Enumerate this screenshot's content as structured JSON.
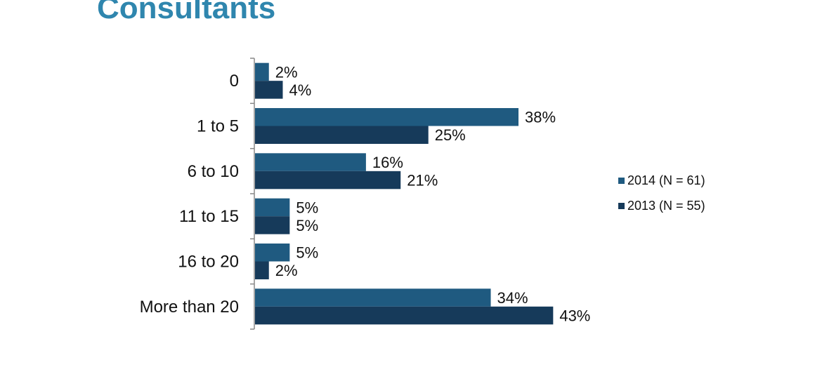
{
  "page": {
    "title": "Consultants"
  },
  "chart_data": {
    "type": "bar",
    "orientation": "horizontal",
    "title": "",
    "xlabel": "",
    "ylabel": "",
    "categories": [
      "0",
      "1 to 5",
      "6 to 10",
      "11 to 15",
      "16 to 20",
      "More than 20"
    ],
    "series": [
      {
        "name": "2014 (N = 61)",
        "values": [
          2,
          38,
          16,
          5,
          5,
          34
        ],
        "color": "#1f5a80"
      },
      {
        "name": "2013 (N = 55)",
        "values": [
          4,
          25,
          21,
          5,
          2,
          43
        ],
        "color": "#163a5a"
      }
    ],
    "value_suffix": "%",
    "xlim": [
      0,
      50
    ],
    "grid": false,
    "legend_position": "right"
  }
}
